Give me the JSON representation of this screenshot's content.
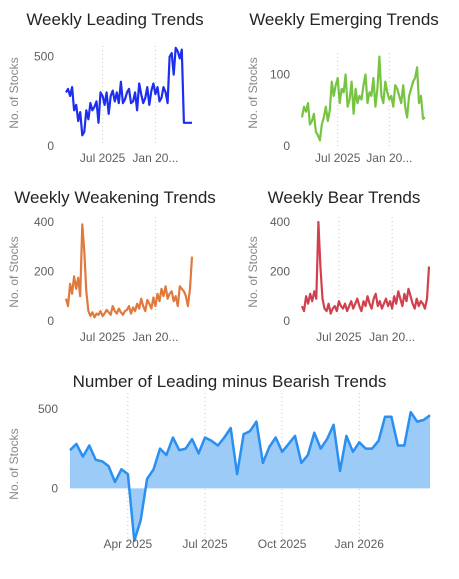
{
  "chart_data": [
    {
      "type": "line",
      "title": "Weekly Leading Trends",
      "ylabel": "No. of Stocks",
      "xlabel": "",
      "color": "#1c2ef0",
      "ylim": [
        0,
        560
      ],
      "yticks": [
        0,
        500
      ],
      "xlim": [
        0,
        62
      ],
      "xticks": [
        {
          "x": 18,
          "label": "Jul 2025"
        },
        {
          "x": 44,
          "label": "Jan 20..."
        }
      ],
      "gridlines_x": [
        18,
        44
      ],
      "x": [
        0,
        1,
        2,
        3,
        4,
        5,
        6,
        7,
        8,
        9,
        10,
        11,
        12,
        13,
        14,
        15,
        16,
        17,
        18,
        19,
        20,
        21,
        22,
        23,
        24,
        25,
        26,
        27,
        28,
        29,
        30,
        31,
        32,
        33,
        34,
        35,
        36,
        37,
        38,
        39,
        40,
        41,
        42,
        43,
        44,
        45,
        46,
        47,
        48,
        49,
        50,
        51,
        52,
        53,
        54,
        55,
        56,
        57,
        58,
        59,
        60,
        61,
        62
      ],
      "values": [
        300,
        320,
        280,
        330,
        200,
        230,
        140,
        190,
        60,
        80,
        200,
        150,
        240,
        200,
        220,
        250,
        130,
        300,
        280,
        230,
        300,
        180,
        280,
        310,
        250,
        300,
        240,
        360,
        240,
        260,
        300,
        320,
        240,
        250,
        300,
        200,
        350,
        290,
        240,
        270,
        330,
        230,
        310,
        350,
        290,
        330,
        250,
        270,
        330,
        300,
        240,
        500,
        520,
        400,
        550,
        530,
        490,
        540,
        130,
        130,
        130,
        130,
        130
      ]
    },
    {
      "type": "line",
      "title": "Weekly Emerging Trends",
      "ylabel": "No. of Stocks",
      "xlabel": "",
      "color": "#76c442",
      "ylim": [
        0,
        130
      ],
      "yticks": [
        0,
        100
      ],
      "xlim": [
        0,
        62
      ],
      "xticks": [
        {
          "x": 18,
          "label": "Jul 2025"
        },
        {
          "x": 44,
          "label": "Jan 20..."
        }
      ],
      "gridlines_x": [
        18,
        44
      ],
      "x": [
        0,
        1,
        2,
        3,
        4,
        5,
        6,
        7,
        8,
        9,
        10,
        11,
        12,
        13,
        14,
        15,
        16,
        17,
        18,
        19,
        20,
        21,
        22,
        23,
        24,
        25,
        26,
        27,
        28,
        29,
        30,
        31,
        32,
        33,
        34,
        35,
        36,
        37,
        38,
        39,
        40,
        41,
        42,
        43,
        44,
        45,
        46,
        47,
        48,
        49,
        50,
        51,
        52,
        53,
        54,
        55,
        56,
        57,
        58,
        59,
        60,
        61,
        62
      ],
      "values": [
        40,
        55,
        48,
        60,
        30,
        35,
        45,
        20,
        15,
        8,
        30,
        40,
        55,
        35,
        50,
        90,
        70,
        85,
        95,
        60,
        80,
        75,
        100,
        55,
        65,
        90,
        45,
        80,
        60,
        70,
        65,
        85,
        100,
        60,
        75,
        70,
        95,
        55,
        80,
        125,
        70,
        60,
        90,
        75,
        65,
        70,
        55,
        85,
        80,
        70,
        60,
        85,
        55,
        40,
        70,
        80,
        90,
        95,
        110,
        60,
        70,
        38,
        40
      ]
    },
    {
      "type": "line",
      "title": "Weekly Weakening Trends",
      "ylabel": "No. of Stocks",
      "xlabel": "",
      "color": "#e07a3c",
      "ylim": [
        0,
        420
      ],
      "yticks": [
        0,
        200,
        400
      ],
      "xlim": [
        0,
        62
      ],
      "xticks": [
        {
          "x": 18,
          "label": "Jul 2025"
        },
        {
          "x": 44,
          "label": "Jan 20..."
        }
      ],
      "gridlines_x": [
        18,
        44
      ],
      "x": [
        0,
        1,
        2,
        3,
        4,
        5,
        6,
        7,
        8,
        9,
        10,
        11,
        12,
        13,
        14,
        15,
        16,
        17,
        18,
        19,
        20,
        21,
        22,
        23,
        24,
        25,
        26,
        27,
        28,
        29,
        30,
        31,
        32,
        33,
        34,
        35,
        36,
        37,
        38,
        39,
        40,
        41,
        42,
        43,
        44,
        45,
        46,
        47,
        48,
        49,
        50,
        51,
        52,
        53,
        54,
        55,
        56,
        57,
        58,
        59,
        60,
        61,
        62
      ],
      "values": [
        90,
        60,
        150,
        110,
        180,
        130,
        175,
        100,
        390,
        280,
        120,
        40,
        20,
        35,
        15,
        30,
        25,
        40,
        20,
        30,
        45,
        35,
        25,
        60,
        40,
        30,
        50,
        35,
        25,
        40,
        45,
        60,
        30,
        55,
        40,
        70,
        50,
        90,
        60,
        40,
        85,
        70,
        50,
        95,
        60,
        110,
        80,
        130,
        100,
        140,
        90,
        110,
        120,
        80,
        100,
        60,
        140,
        130,
        120,
        100,
        60,
        130,
        260
      ]
    },
    {
      "type": "line",
      "title": "Weekly Bear Trends",
      "ylabel": "No. of Stocks",
      "xlabel": "",
      "color": "#d1404e",
      "ylim": [
        0,
        420
      ],
      "yticks": [
        0,
        200,
        400
      ],
      "xlim": [
        0,
        62
      ],
      "xticks": [
        {
          "x": 18,
          "label": "Jul 2025"
        },
        {
          "x": 44,
          "label": "Jan 20..."
        }
      ],
      "gridlines_x": [
        18,
        44
      ],
      "x": [
        0,
        1,
        2,
        3,
        4,
        5,
        6,
        7,
        8,
        9,
        10,
        11,
        12,
        13,
        14,
        15,
        16,
        17,
        18,
        19,
        20,
        21,
        22,
        23,
        24,
        25,
        26,
        27,
        28,
        29,
        30,
        31,
        32,
        33,
        34,
        35,
        36,
        37,
        38,
        39,
        40,
        41,
        42,
        43,
        44,
        45,
        46,
        47,
        48,
        49,
        50,
        51,
        52,
        53,
        54,
        55,
        56,
        57,
        58,
        59,
        60,
        61,
        62
      ],
      "values": [
        60,
        40,
        100,
        70,
        110,
        80,
        120,
        90,
        400,
        220,
        90,
        50,
        40,
        70,
        30,
        50,
        60,
        40,
        80,
        60,
        50,
        70,
        40,
        60,
        80,
        50,
        70,
        90,
        60,
        40,
        80,
        60,
        100,
        70,
        50,
        90,
        110,
        60,
        80,
        50,
        70,
        90,
        60,
        80,
        50,
        100,
        70,
        120,
        90,
        60,
        110,
        80,
        130,
        100,
        70,
        50,
        90,
        60,
        80,
        70,
        50,
        90,
        220
      ]
    },
    {
      "type": "area",
      "title": "Number of Leading minus Bearish Trends",
      "ylabel": "No. of Stocks",
      "xlabel": "",
      "color": "#2a8ff0",
      "fill": "#9ccbf7",
      "ylim": [
        -350,
        600
      ],
      "yticks": [
        0,
        500
      ],
      "xlim": [
        0,
        56
      ],
      "xticks": [
        {
          "x": 9,
          "label": "Apr 2025"
        },
        {
          "x": 21,
          "label": "Jul 2025"
        },
        {
          "x": 33,
          "label": "Oct 2025"
        },
        {
          "x": 45,
          "label": "Jan 2026"
        }
      ],
      "gridlines_x": [
        9,
        21,
        33,
        45
      ],
      "x": [
        0,
        1,
        2,
        3,
        4,
        5,
        6,
        7,
        8,
        9,
        10,
        11,
        12,
        13,
        14,
        15,
        16,
        17,
        18,
        19,
        20,
        21,
        22,
        23,
        24,
        25,
        26,
        27,
        28,
        29,
        30,
        31,
        32,
        33,
        34,
        35,
        36,
        37,
        38,
        39,
        40,
        41,
        42,
        43,
        44,
        45,
        46,
        47,
        48,
        49,
        50,
        51,
        52,
        53,
        54,
        55,
        56
      ],
      "values": [
        240,
        280,
        200,
        270,
        180,
        170,
        140,
        40,
        120,
        90,
        -330,
        -200,
        60,
        120,
        250,
        210,
        320,
        240,
        250,
        310,
        220,
        320,
        300,
        270,
        320,
        380,
        90,
        340,
        360,
        420,
        160,
        260,
        320,
        230,
        280,
        330,
        160,
        210,
        350,
        250,
        310,
        400,
        110,
        330,
        230,
        290,
        250,
        250,
        300,
        450,
        450,
        270,
        270,
        480,
        420,
        430,
        460
      ]
    }
  ]
}
